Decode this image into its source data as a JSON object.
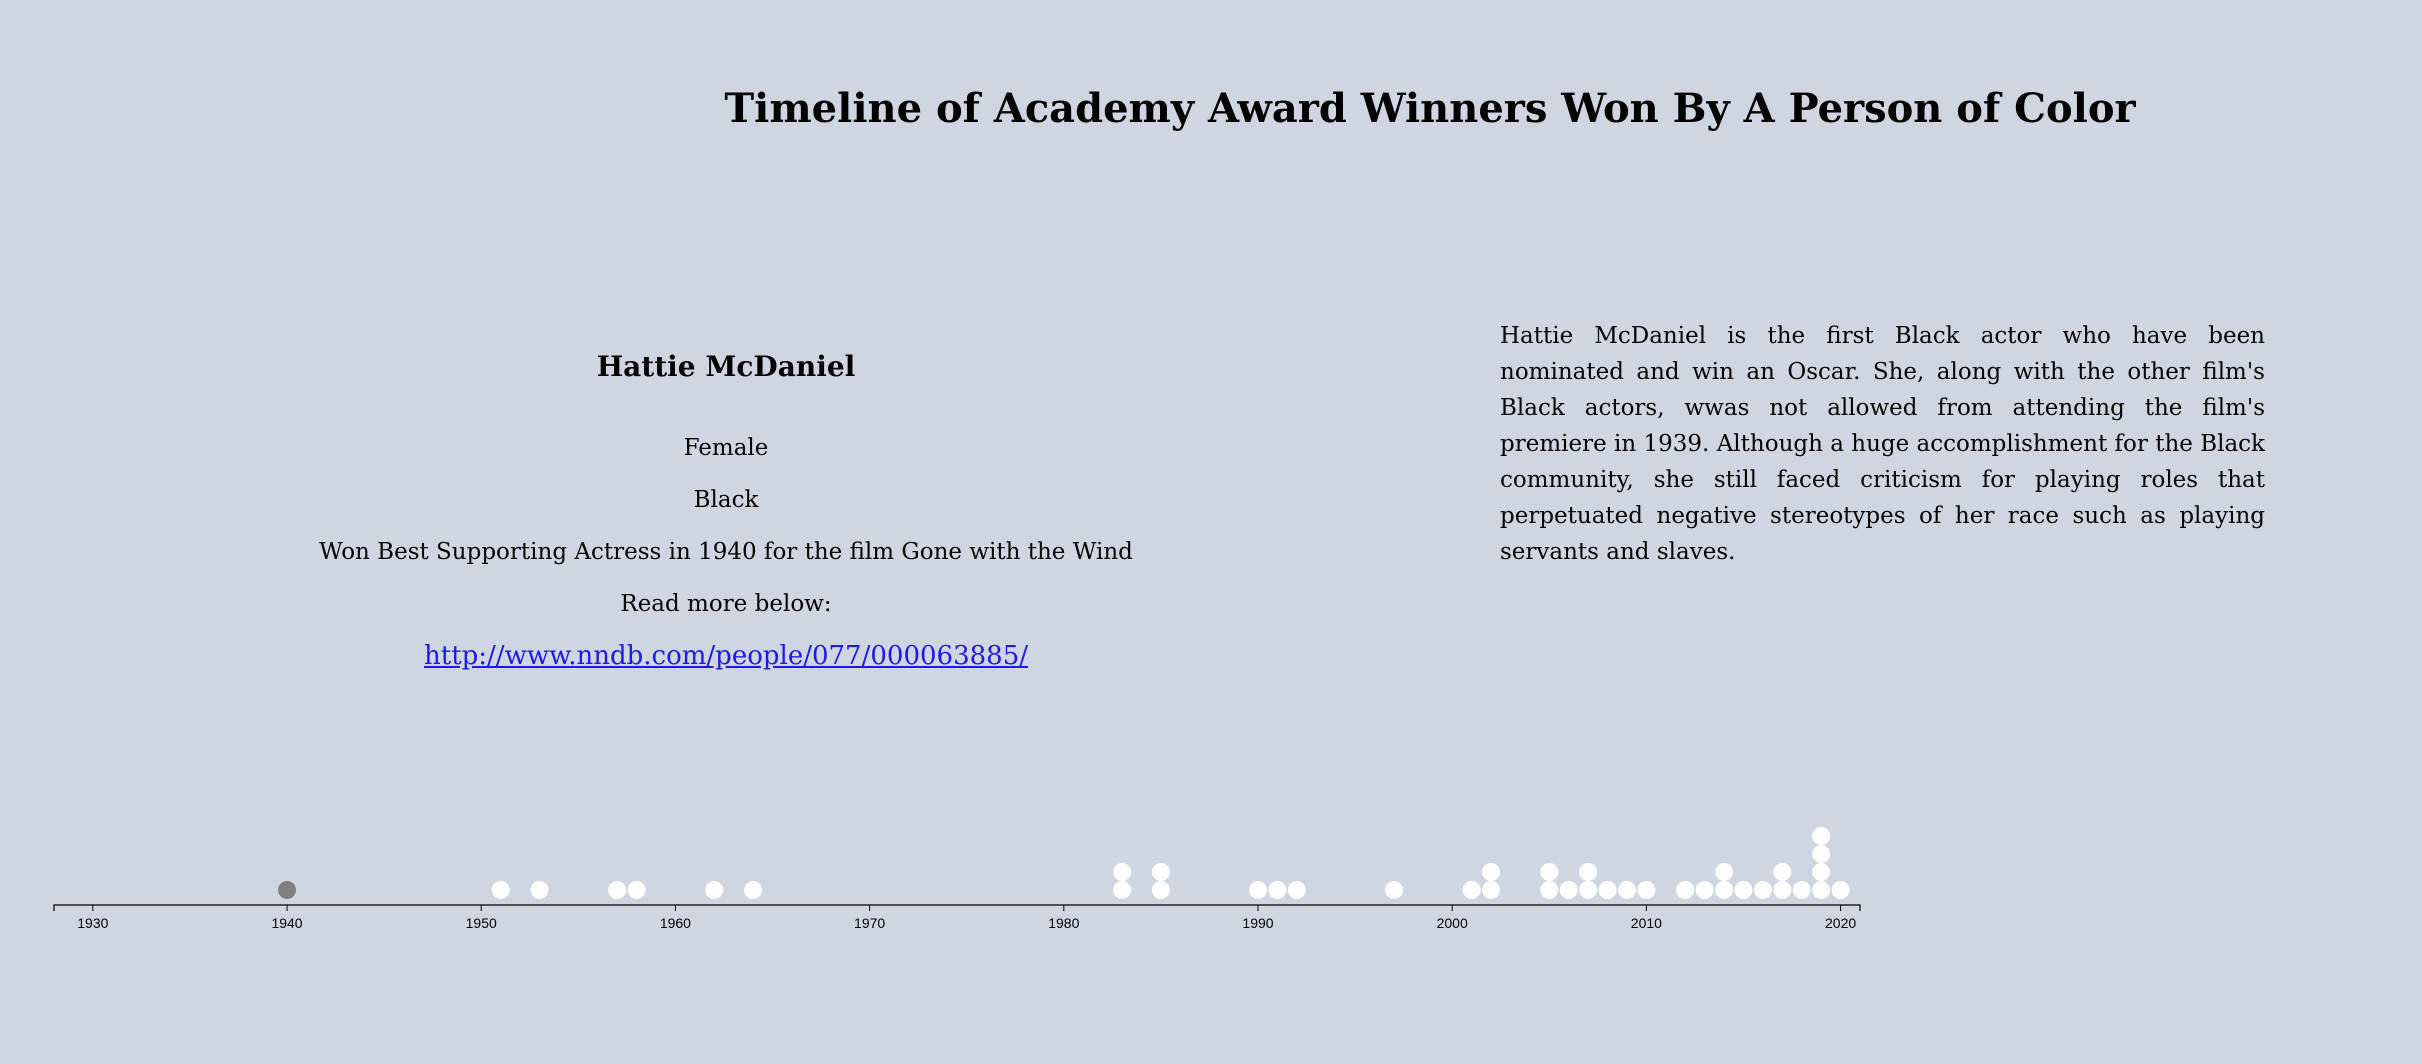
{
  "title": "Timeline of Academy Award Winners Won By A Person of Color",
  "selected": {
    "name": "Hattie McDaniel",
    "gender": "Female",
    "race": "Black",
    "award": "Won Best Supporting Actress in 1940 for the film Gone with the Wind",
    "read_more_label": "Read more below:",
    "link": "http://www.nndb.com/people/077/000063885/",
    "bio": "Hattie McDaniel is the first Black actor who have been nominated and win an Oscar. She, along with the other film's Black actors, wwas not allowed from attending the film's premiere in 1939. Although a huge accomplishment for the Black community, she still faced criticism for playing roles that perpetuated negative stereotypes of her race such as playing servants and slaves."
  },
  "chart_data": {
    "type": "scatter",
    "description_of_encoding": "dot plot; one dot per award winner stacked by year",
    "x_domain": [
      1928,
      2021
    ],
    "ticks": [
      1930,
      1940,
      1950,
      1960,
      1970,
      1980,
      1990,
      2000,
      2010,
      2020
    ],
    "colors": {
      "dot": "#ffffff",
      "selected": "#808080",
      "background": "#d0d5e2"
    },
    "points": [
      {
        "year": 1940,
        "count": 1,
        "selected": true
      },
      {
        "year": 1951,
        "count": 1
      },
      {
        "year": 1953,
        "count": 1
      },
      {
        "year": 1957,
        "count": 1
      },
      {
        "year": 1958,
        "count": 1
      },
      {
        "year": 1962,
        "count": 1
      },
      {
        "year": 1964,
        "count": 1
      },
      {
        "year": 1983,
        "count": 2
      },
      {
        "year": 1985,
        "count": 2
      },
      {
        "year": 1990,
        "count": 1
      },
      {
        "year": 1991,
        "count": 1
      },
      {
        "year": 1992,
        "count": 1
      },
      {
        "year": 1997,
        "count": 1
      },
      {
        "year": 2001,
        "count": 1
      },
      {
        "year": 2002,
        "count": 2
      },
      {
        "year": 2005,
        "count": 2
      },
      {
        "year": 2006,
        "count": 1
      },
      {
        "year": 2007,
        "count": 2
      },
      {
        "year": 2008,
        "count": 1
      },
      {
        "year": 2009,
        "count": 1
      },
      {
        "year": 2010,
        "count": 1
      },
      {
        "year": 2012,
        "count": 1
      },
      {
        "year": 2013,
        "count": 1
      },
      {
        "year": 2014,
        "count": 2
      },
      {
        "year": 2015,
        "count": 1
      },
      {
        "year": 2016,
        "count": 1
      },
      {
        "year": 2017,
        "count": 2
      },
      {
        "year": 2018,
        "count": 1
      },
      {
        "year": 2019,
        "count": 4
      },
      {
        "year": 2020,
        "count": 1
      }
    ]
  }
}
